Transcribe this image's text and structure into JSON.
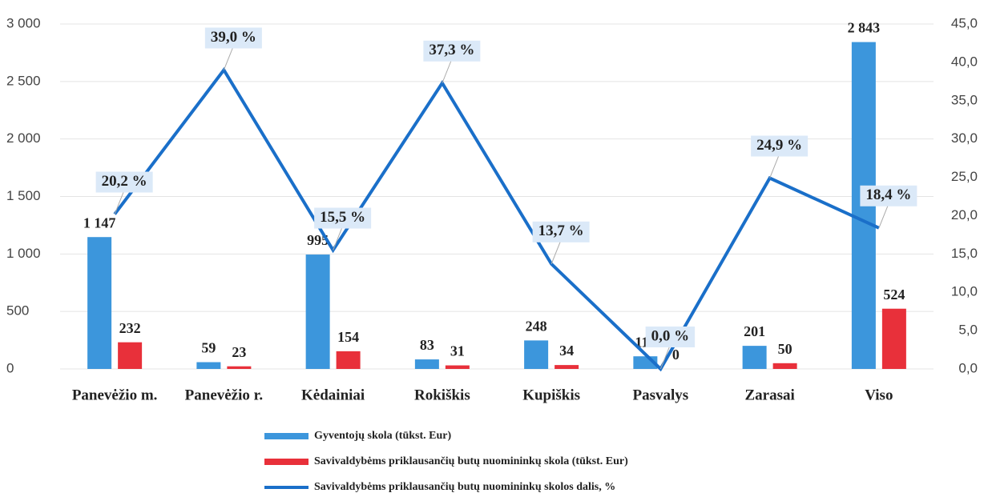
{
  "chart_data": {
    "type": "bar-line",
    "categories": [
      "Panevėžio m.",
      "Panevėžio r.",
      "Kėdainiai",
      "Rokiškis",
      "Kupiškis",
      "Pasvalys",
      "Zarasai",
      "Viso"
    ],
    "series": [
      {
        "name": "Gyventojų skola (tūkst. Eur)",
        "type": "bar",
        "color": "#3c96dc",
        "values": [
          1147,
          59,
          995,
          83,
          248,
          110,
          201,
          2843
        ],
        "value_labels": [
          "1 147",
          "59",
          "995",
          "83",
          "248",
          "110",
          "201",
          "2 843"
        ]
      },
      {
        "name": "Savivaldybėms priklausančių butų nuomininkų skola (tūkst. Eur)",
        "type": "bar",
        "color": "#e8303a",
        "values": [
          232,
          23,
          154,
          31,
          34,
          0,
          50,
          524
        ],
        "value_labels": [
          "232",
          "23",
          "154",
          "31",
          "34",
          "0",
          "50",
          "524"
        ]
      },
      {
        "name": "Savivaldybėms priklausančių butų nuomininkų skolos dalis, %",
        "type": "line",
        "axis": "y2",
        "color": "#1a6fc9",
        "values": [
          20.2,
          39.0,
          15.5,
          37.3,
          13.7,
          0.0,
          24.9,
          18.4
        ],
        "value_labels": [
          "20,2 %",
          "39,0 %",
          "15,5 %",
          "37,3 %",
          "13,7 %",
          "0,0 %",
          "24,9 %",
          "18,4 %"
        ]
      }
    ],
    "ylim": [
      0,
      3000
    ],
    "yticks": [
      0,
      500,
      {
        "value": 1000,
        "label": "1 000"
      },
      {
        "value": 1500,
        "label": "1 500"
      },
      {
        "value": 2000,
        "label": "2 000"
      },
      {
        "value": 2500,
        "label": "2 500"
      },
      {
        "value": 3000,
        "label": "3 000"
      }
    ],
    "y2lim": [
      0,
      45
    ],
    "y2ticks": [
      {
        "value": 0,
        "label": "0,0"
      },
      {
        "value": 5,
        "label": "5,0"
      },
      {
        "value": 10,
        "label": "10,0"
      },
      {
        "value": 15,
        "label": "15,0"
      },
      {
        "value": 20,
        "label": "20,0"
      },
      {
        "value": 25,
        "label": "25,0"
      },
      {
        "value": 30,
        "label": "30,0"
      },
      {
        "value": 35,
        "label": "35,0"
      },
      {
        "value": 40,
        "label": "40,0"
      },
      {
        "value": 45,
        "label": "45,0"
      }
    ],
    "grid": true,
    "legend": "bottom"
  }
}
